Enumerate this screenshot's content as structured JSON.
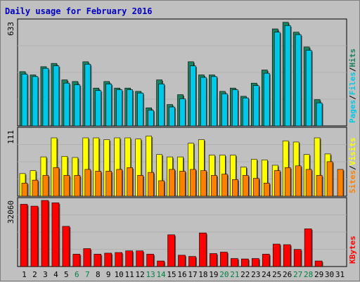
{
  "title": "Daily usage for February 2016",
  "colors": {
    "hits": "#1a8060",
    "files": "#00c8e8",
    "pages": "#00c8e8",
    "visits": "#ffff00",
    "sites": "#ff8000",
    "kbytes": "#ff0000",
    "background": "#c0c0c0",
    "weekend": "#008040",
    "weekday": "#000000"
  },
  "chart_data": [
    {
      "type": "bar",
      "title": "Daily usage for February 2016",
      "categories": [
        "1",
        "2",
        "3",
        "4",
        "5",
        "6",
        "7",
        "8",
        "9",
        "10",
        "11",
        "12",
        "13",
        "14",
        "15",
        "16",
        "17",
        "18",
        "19",
        "20",
        "21",
        "22",
        "23",
        "24",
        "25",
        "26",
        "27",
        "28",
        "29",
        "30",
        "31"
      ],
      "weekend_days": [
        "6",
        "7",
        "13",
        "14",
        "20",
        "21",
        "27",
        "28"
      ],
      "ymax_label": "633",
      "ylim": [
        0,
        633
      ],
      "legend": [
        "Pages",
        "/",
        "Files",
        "/",
        "Hits"
      ],
      "series": [
        {
          "name": "Hits",
          "values": [
            330,
            310,
            360,
            380,
            280,
            270,
            390,
            230,
            270,
            230,
            230,
            210,
            110,
            280,
            130,
            190,
            390,
            310,
            310,
            210,
            230,
            180,
            260,
            340,
            590,
            630,
            570,
            480,
            160,
            0,
            0
          ]
        },
        {
          "name": "Files",
          "values": [
            315,
            300,
            350,
            365,
            260,
            250,
            375,
            215,
            255,
            220,
            220,
            200,
            95,
            255,
            115,
            165,
            365,
            295,
            300,
            195,
            220,
            170,
            245,
            320,
            570,
            610,
            555,
            460,
            140,
            0,
            0
          ]
        }
      ]
    },
    {
      "type": "bar",
      "ymax_label": "111",
      "ylim": [
        0,
        111
      ],
      "legend": [
        "Sites",
        "/",
        "Visits"
      ],
      "series": [
        {
          "name": "Visits",
          "values": [
            38,
            43,
            66,
            98,
            67,
            65,
            98,
            98,
            95,
            98,
            98,
            96,
            101,
            70,
            66,
            66,
            89,
            95,
            69,
            69,
            69,
            49,
            62,
            61,
            52,
            93,
            91,
            70,
            98,
            71,
            0
          ]
        },
        {
          "name": "Sites",
          "values": [
            22,
            27,
            35,
            48,
            35,
            35,
            45,
            42,
            42,
            45,
            48,
            35,
            40,
            26,
            45,
            42,
            45,
            43,
            35,
            37,
            28,
            35,
            30,
            22,
            43,
            48,
            51,
            45,
            35,
            58,
            45
          ]
        }
      ]
    },
    {
      "type": "bar",
      "ymax_label": "32060",
      "ylim": [
        0,
        32060
      ],
      "legend": [
        "KBytes"
      ],
      "series": [
        {
          "name": "KBytes",
          "values": [
            30200,
            29300,
            32060,
            30900,
            19500,
            6000,
            8700,
            6000,
            6500,
            6800,
            7600,
            7600,
            6000,
            2700,
            15400,
            5500,
            4900,
            16300,
            6300,
            7000,
            3900,
            3700,
            3900,
            6000,
            10900,
            10600,
            8300,
            18300,
            2700,
            0,
            0
          ]
        }
      ]
    }
  ]
}
